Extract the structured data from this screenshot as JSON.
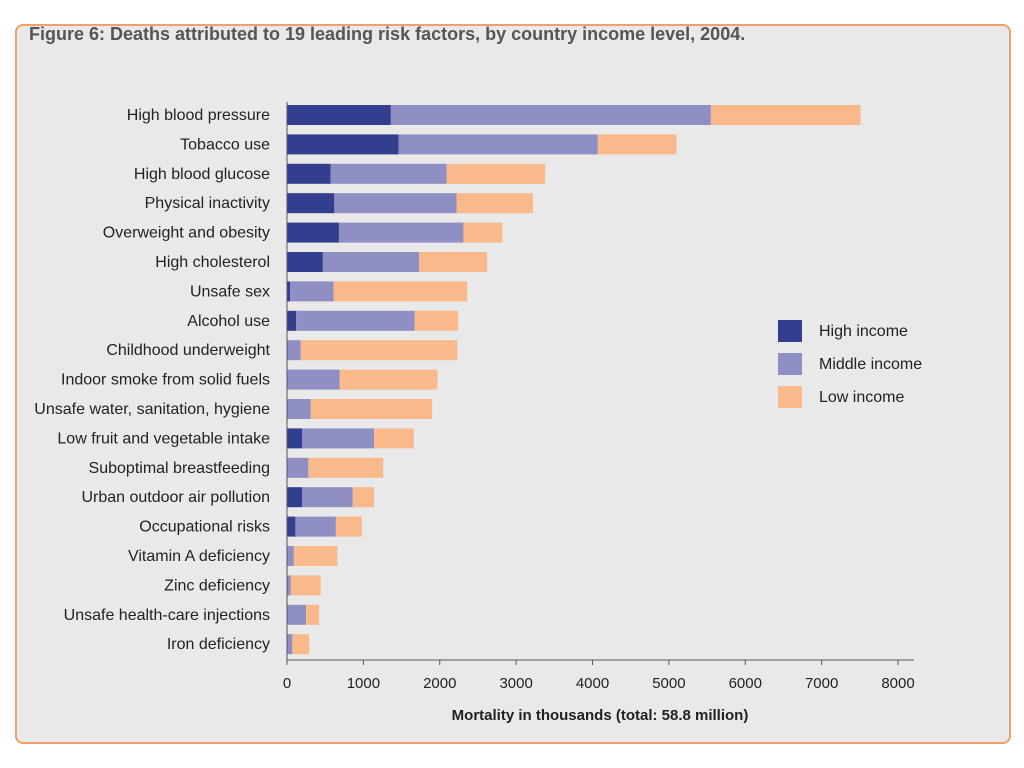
{
  "chart_data": {
    "type": "bar",
    "orientation": "horizontal",
    "stacked": true,
    "title": "Figure 6: Deaths attributed to 19 leading risk factors, by country income level, 2004.",
    "xlabel": "Mortality in thousands (total: 58.8 million)",
    "ylabel": "",
    "xlim": [
      0,
      8000
    ],
    "xticks": [
      0,
      1000,
      2000,
      3000,
      4000,
      5000,
      6000,
      7000,
      8000
    ],
    "grid": false,
    "legend_position": "right",
    "categories": [
      "High blood pressure",
      "Tobacco use",
      "High blood glucose",
      "Physical inactivity",
      "Overweight and obesity",
      "High cholesterol",
      "Unsafe sex",
      "Alcohol use",
      "Childhood underweight",
      "Indoor smoke from solid fuels",
      "Unsafe water, sanitation, hygiene",
      "Low fruit and vegetable intake",
      "Suboptimal breastfeeding",
      "Urban outdoor air pollution",
      "Occupational risks",
      "Vitamin A deficiency",
      "Zinc deficiency",
      "Unsafe health-care injections",
      "Iron deficiency"
    ],
    "series": [
      {
        "name": "High income",
        "color": "#333f8e",
        "values": [
          1360,
          1460,
          570,
          620,
          680,
          470,
          40,
          120,
          10,
          10,
          10,
          200,
          10,
          200,
          110,
          10,
          10,
          10,
          10
        ]
      },
      {
        "name": "Middle income",
        "color": "#8f8fc4",
        "values": [
          4190,
          2610,
          1520,
          1600,
          1630,
          1260,
          570,
          1550,
          170,
          680,
          300,
          940,
          270,
          660,
          530,
          80,
          40,
          240,
          60
        ]
      },
      {
        "name": "Low income",
        "color": "#f9b98b",
        "values": [
          1960,
          1030,
          1290,
          1000,
          510,
          890,
          1750,
          570,
          2050,
          1280,
          1590,
          520,
          980,
          280,
          340,
          570,
          390,
          170,
          220
        ]
      }
    ]
  }
}
